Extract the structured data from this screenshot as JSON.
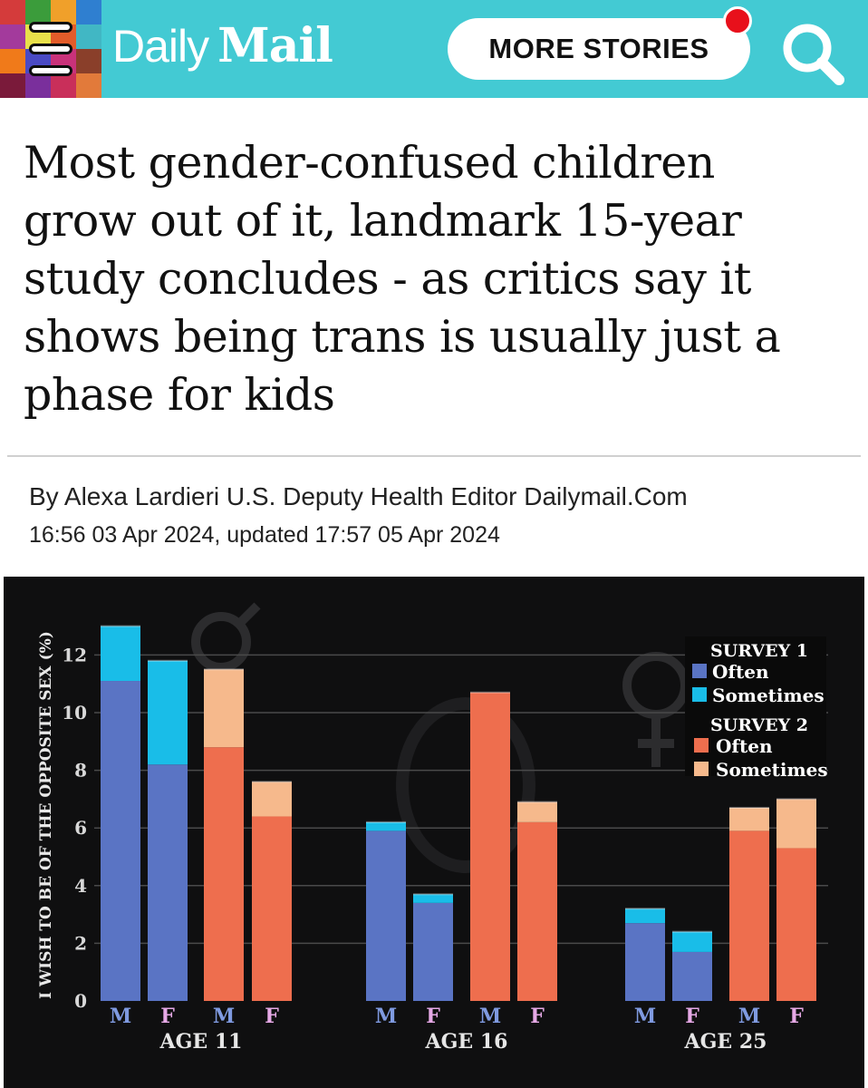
{
  "header": {
    "logo_left": "Daily",
    "logo_right": "Mail",
    "more_stories_label": "MORE STORIES",
    "menu_icon": "hamburger-menu-icon",
    "search_icon": "search-icon",
    "bg_color": "#43cad3",
    "notification_color": "#e8101b",
    "mosaic_colors": [
      "#d43b3b",
      "#3b9c3b",
      "#f0a02a",
      "#2f7fd0",
      "#a33a9c",
      "#e8e04a",
      "#e25c2a",
      "#41b7c4",
      "#f07a1a",
      "#4a4ac4",
      "#c9327a",
      "#8a3f2a",
      "#7a1a3a",
      "#7a2f9c",
      "#c92f5a",
      "#e27a3a"
    ]
  },
  "article": {
    "headline": "Most gender-confused children grow out of it, landmark 15-year study concludes - as critics say it shows being trans is usually just a phase for kids",
    "byline": "By Alexa Lardieri U.S. Deputy Health Editor Dailymail.Com",
    "dateline": "16:56 03 Apr 2024, updated 17:57 05 Apr 2024"
  },
  "chart_data": {
    "type": "bar",
    "stacked": true,
    "ylabel": "I WISH TO BE OF THE OPPOSITE SEX (%)",
    "yticks": [
      0,
      2,
      4,
      6,
      8,
      10,
      12
    ],
    "ylim": [
      0,
      13.5
    ],
    "grid": true,
    "legend_position": "top-right",
    "groups": [
      "AGE 11",
      "AGE 16",
      "AGE 25"
    ],
    "categories": [
      "M",
      "F",
      "M",
      "F",
      "M",
      "F",
      "M",
      "F",
      "M",
      "F",
      "M",
      "F"
    ],
    "category_survey": [
      1,
      1,
      2,
      2,
      1,
      1,
      2,
      2,
      1,
      1,
      2,
      2
    ],
    "category_group": [
      0,
      0,
      0,
      0,
      1,
      1,
      1,
      1,
      2,
      2,
      2,
      2
    ],
    "series": [
      {
        "name": "Often",
        "survey": "SURVEY 1",
        "color": "#5a74c4",
        "values": [
          11.1,
          8.2,
          null,
          null,
          5.9,
          3.4,
          null,
          null,
          2.7,
          1.7,
          null,
          null
        ]
      },
      {
        "name": "Sometimes",
        "survey": "SURVEY 1",
        "color": "#19bde8",
        "values": [
          1.9,
          3.6,
          null,
          null,
          0.3,
          0.3,
          null,
          null,
          0.5,
          0.7,
          null,
          null
        ]
      },
      {
        "name": "Often",
        "survey": "SURVEY 2",
        "color": "#ee6e4e",
        "values": [
          null,
          null,
          8.8,
          6.4,
          null,
          null,
          10.7,
          6.2,
          null,
          null,
          5.9,
          5.3
        ]
      },
      {
        "name": "Sometimes",
        "survey": "SURVEY 2",
        "color": "#f6b98c",
        "values": [
          null,
          null,
          2.7,
          1.2,
          null,
          null,
          0.0,
          0.7,
          null,
          null,
          0.8,
          1.7
        ]
      }
    ],
    "legend": {
      "survey1_title": "SURVEY 1",
      "survey2_title": "SURVEY 2",
      "often": "Often",
      "sometimes": "Sometimes"
    },
    "colors": {
      "background": "#0f0f10",
      "grid": "#4a4a4a",
      "tick_text": "#d8d8d8",
      "m_label": "#7f9ae0",
      "f_label": "#e6a9e6",
      "group_label": "#e6e6e6"
    }
  }
}
